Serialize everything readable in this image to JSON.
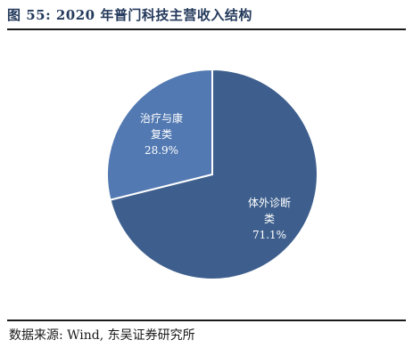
{
  "header": {
    "title": "图 55:  2020 年普门科技主营收入结构"
  },
  "footer": {
    "source": "数据来源:  Wind,  东吴证券研究所"
  },
  "colors": {
    "slice_primary": "#3e5f8d",
    "slice_secondary": "#5279b2",
    "border": "#ffffff"
  },
  "chart_data": {
    "type": "pie",
    "title": "",
    "slices": [
      {
        "label_lines": [
          "体外诊断",
          "类"
        ],
        "value": 71.1,
        "value_label": "71.1%"
      },
      {
        "label_lines": [
          "治疗与康",
          "复类"
        ],
        "value": 28.9,
        "value_label": "28.9%"
      }
    ]
  }
}
